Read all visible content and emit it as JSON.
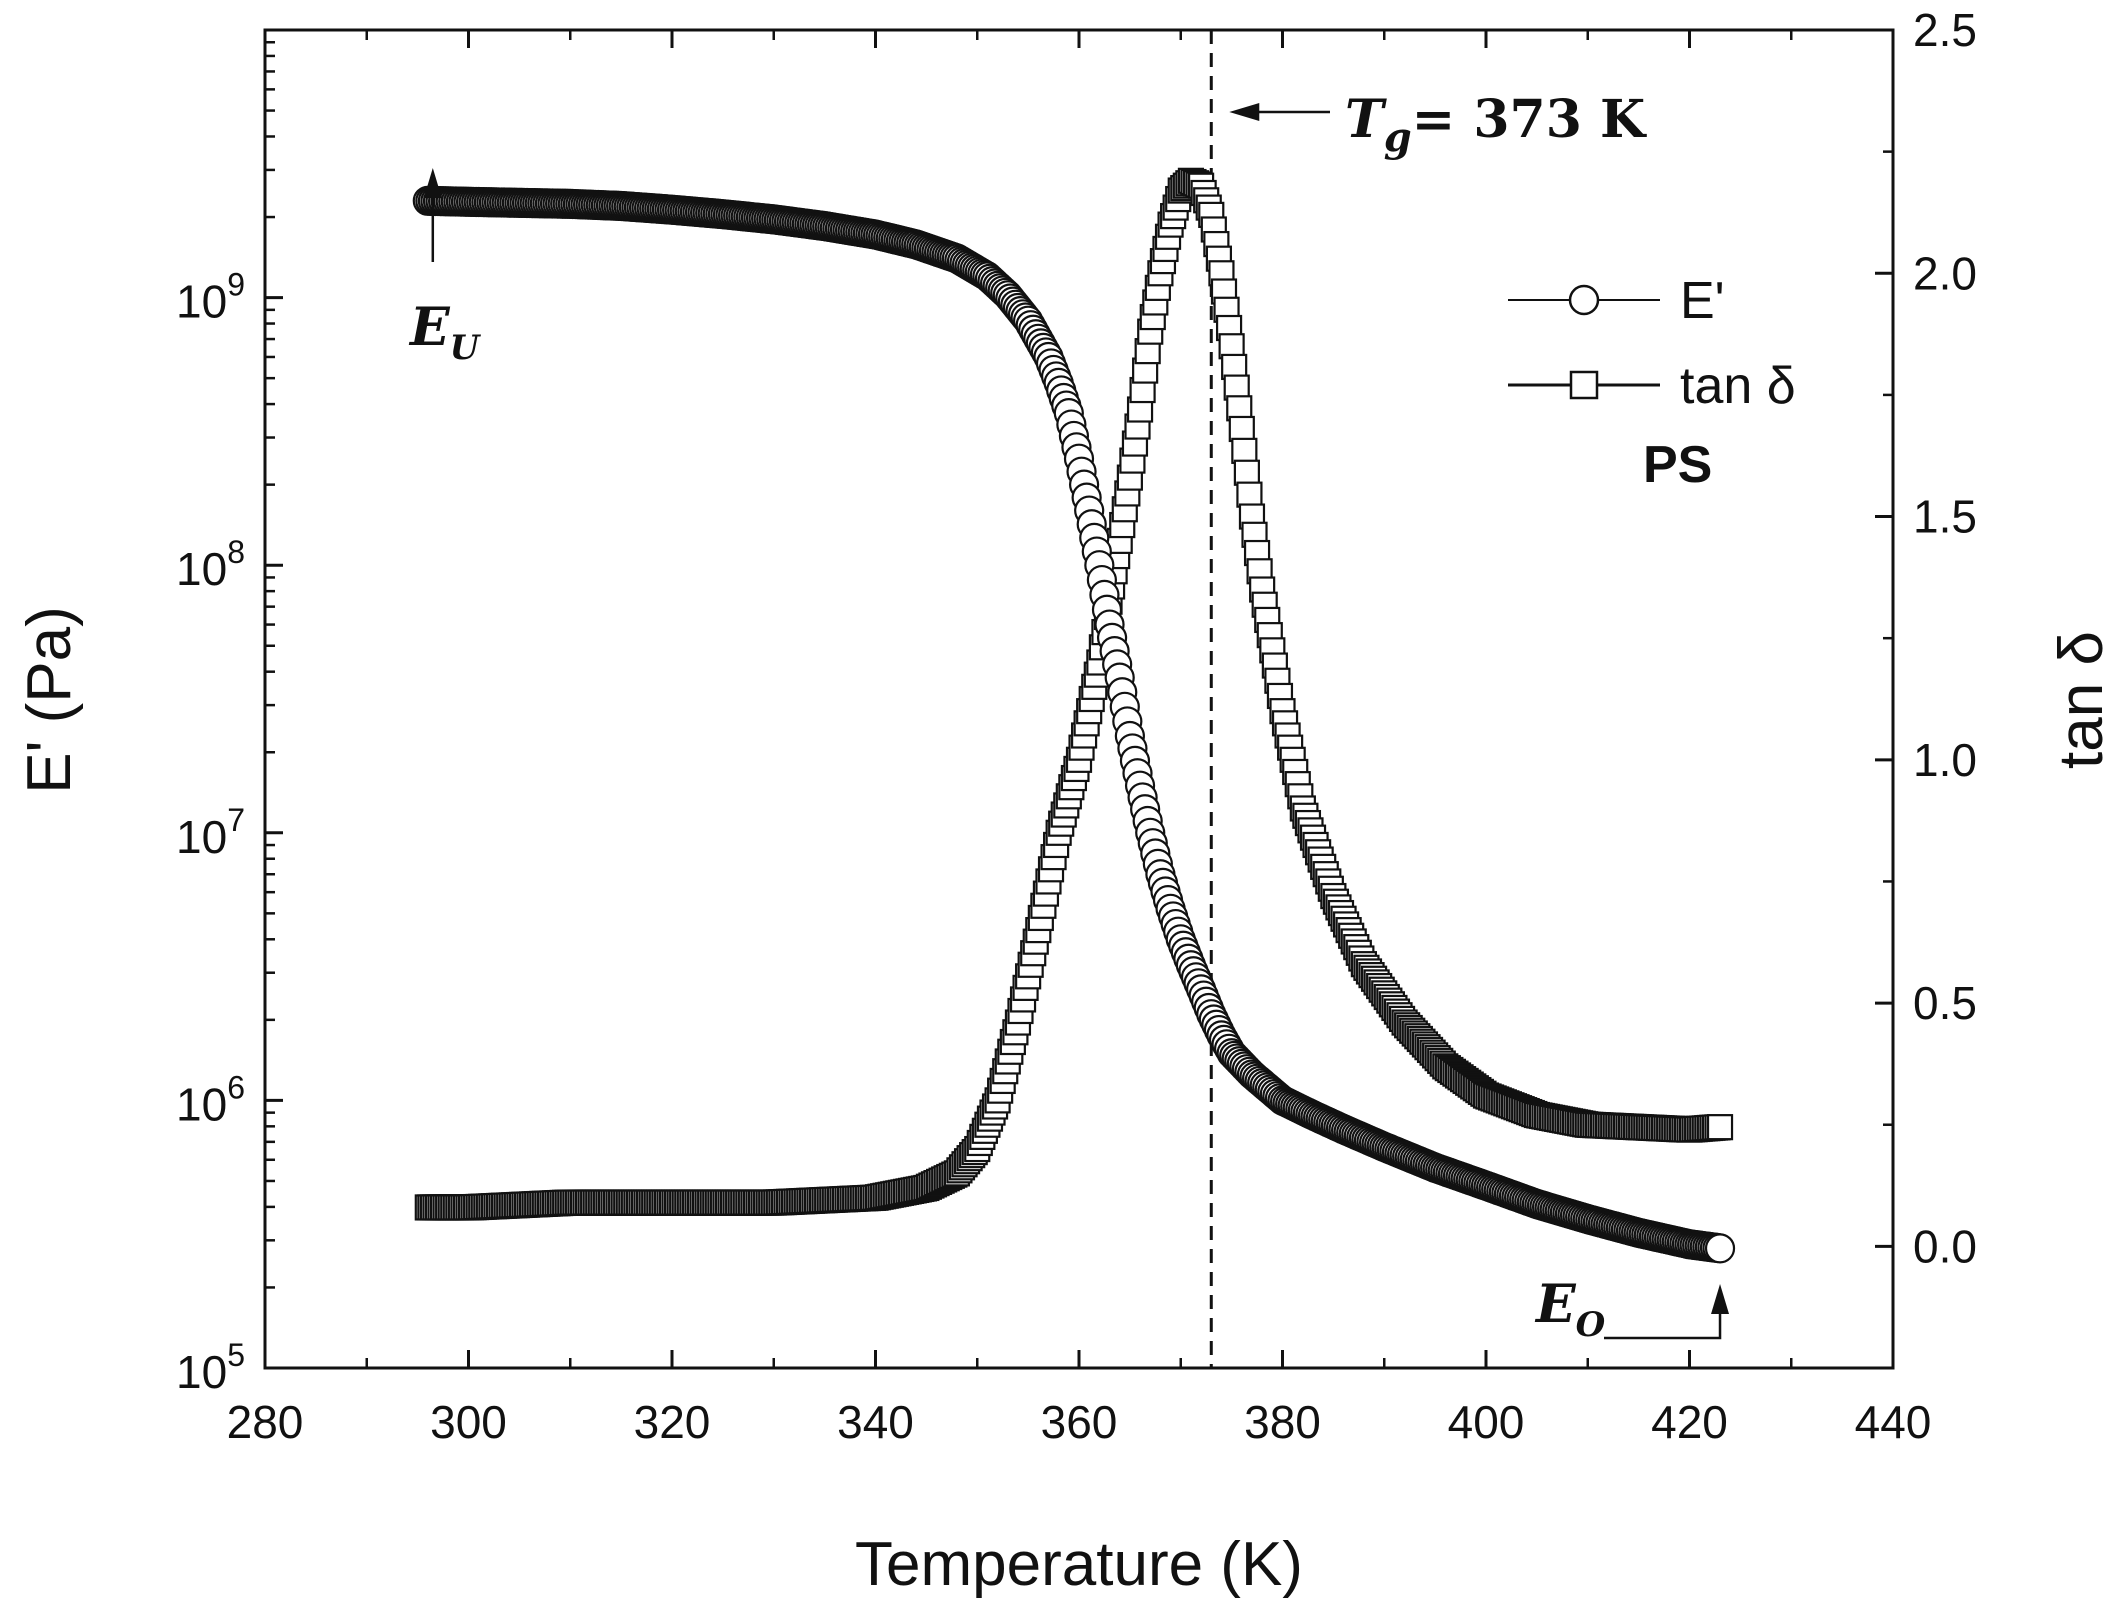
{
  "chart_data": {
    "type": "scatter",
    "title": "",
    "xlabel": "Temperature (K)",
    "ylabel_left": "E' (Pa)",
    "ylabel_right": "tan δ",
    "xlim": [
      280,
      440
    ],
    "xticks": [
      "280",
      "300",
      "320",
      "340",
      "360",
      "380",
      "400",
      "420",
      "440"
    ],
    "ylim_left": [
      100000,
      10000000000
    ],
    "yscale_left": "log",
    "yticks_left": [
      {
        "base": "10",
        "exp": "5",
        "value": 100000
      },
      {
        "base": "10",
        "exp": "6",
        "value": 1000000
      },
      {
        "base": "10",
        "exp": "7",
        "value": 10000000
      },
      {
        "base": "10",
        "exp": "8",
        "value": 100000000
      },
      {
        "base": "10",
        "exp": "9",
        "value": 1000000000
      }
    ],
    "ylim_right": [
      -0.25,
      2.5
    ],
    "yticks_right": [
      "0.0",
      "0.5",
      "1.0",
      "1.5",
      "2.0",
      "2.5"
    ],
    "grid": false,
    "legend_position": "top-right",
    "sample_label": "PS",
    "series": [
      {
        "name": "E'",
        "marker": "circle",
        "axis": "left",
        "x": [
          296,
          300,
          305,
          310,
          315,
          320,
          325,
          330,
          335,
          340,
          344,
          348,
          351,
          353,
          355,
          357,
          358,
          359,
          360,
          361,
          362,
          363,
          364,
          365,
          366,
          367,
          368,
          369,
          370,
          371,
          372,
          373,
          374,
          375,
          377,
          380,
          383,
          386,
          390,
          395,
          400,
          405,
          410,
          415,
          420,
          423
        ],
        "y": [
          2300000000,
          2280000000,
          2260000000,
          2240000000,
          2200000000,
          2130000000,
          2050000000,
          1960000000,
          1850000000,
          1720000000,
          1580000000,
          1400000000,
          1200000000,
          1020000000,
          820000000,
          600000000,
          480000000,
          370000000,
          250000000,
          160000000,
          100000000,
          60000000,
          38000000,
          23000000,
          15000000,
          10000000,
          7000000,
          5200000,
          4000000,
          3200000,
          2600000,
          2100000,
          1750000,
          1500000,
          1250000,
          1000000,
          880000,
          780000,
          670000,
          560000,
          480000,
          410000,
          360000,
          320000,
          290000,
          280000
        ]
      },
      {
        "name": "tan δ",
        "marker": "square",
        "axis": "right",
        "x": [
          296,
          300,
          310,
          320,
          330,
          340,
          345,
          348,
          350,
          352,
          354,
          356,
          358,
          360,
          362,
          364,
          365,
          366,
          367,
          368,
          369,
          370,
          371,
          372,
          373,
          374,
          375,
          376,
          377,
          378,
          380,
          382,
          385,
          388,
          392,
          396,
          400,
          405,
          410,
          415,
          420,
          423
        ],
        "y": [
          0.08,
          0.08,
          0.09,
          0.09,
          0.09,
          0.1,
          0.12,
          0.15,
          0.2,
          0.3,
          0.46,
          0.65,
          0.85,
          1.0,
          1.2,
          1.45,
          1.58,
          1.72,
          1.88,
          2.0,
          2.1,
          2.17,
          2.19,
          2.18,
          2.12,
          2.0,
          1.85,
          1.68,
          1.5,
          1.35,
          1.1,
          0.9,
          0.72,
          0.58,
          0.46,
          0.37,
          0.31,
          0.27,
          0.25,
          0.245,
          0.24,
          0.245
        ]
      }
    ],
    "annotations": [
      {
        "label": "T",
        "sub": "g",
        "suffix": "= 373 K",
        "x": 373,
        "type": "vertical-dashed-line"
      },
      {
        "label": "E",
        "sub": "U",
        "x": 296,
        "y": 2300000000
      },
      {
        "label": "E",
        "sub": "O",
        "x": 423,
        "y": 280000
      }
    ]
  }
}
